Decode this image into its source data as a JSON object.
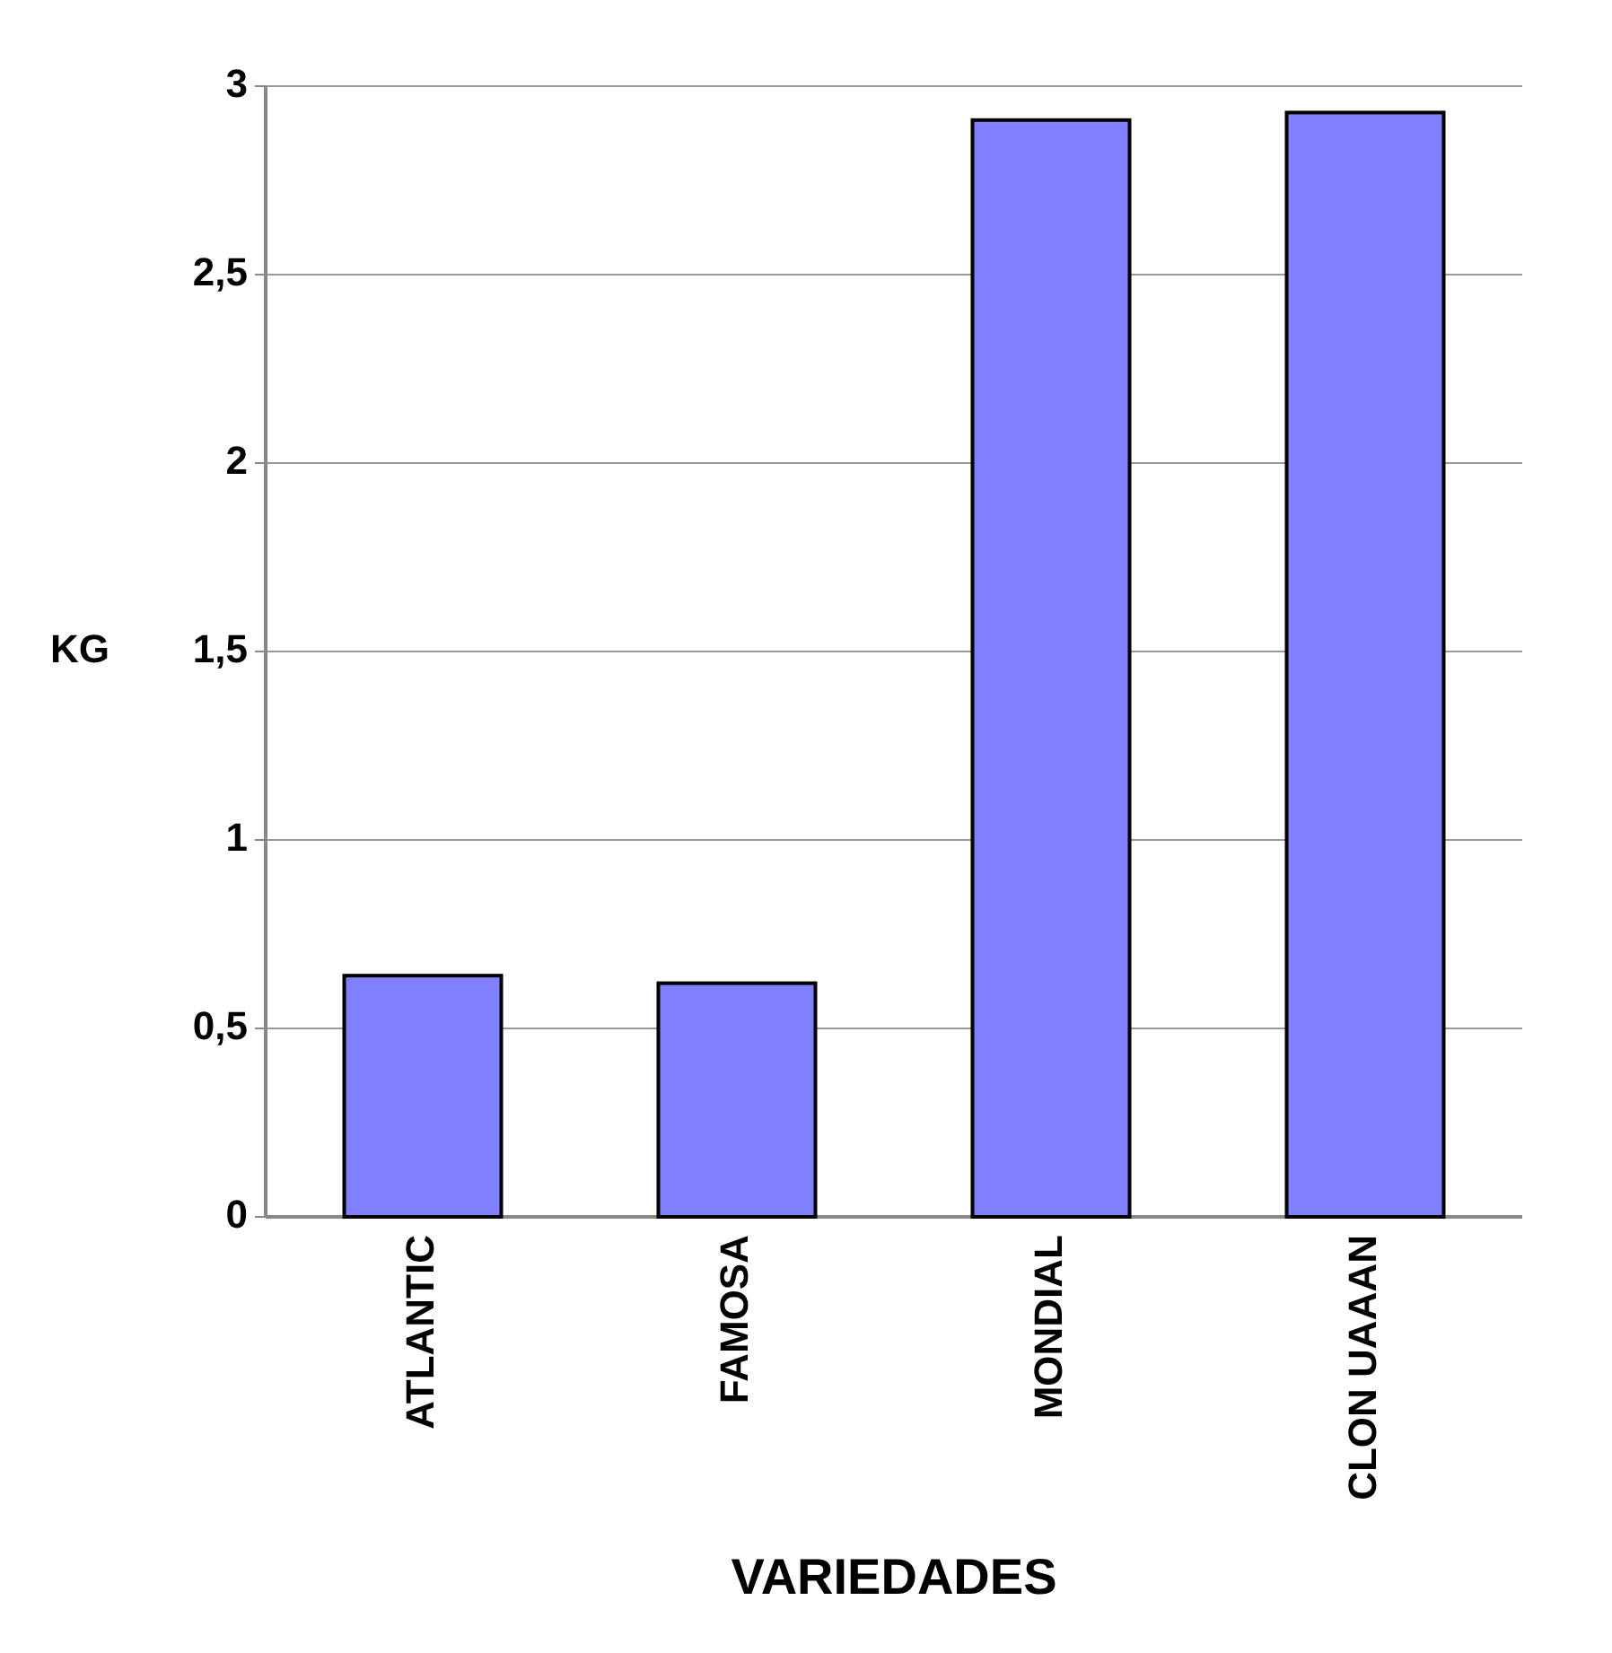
{
  "chart_data": {
    "type": "bar",
    "xlabel": "VARIEDADES",
    "ylabel": "KG",
    "categories": [
      "ATLANTIC",
      "FAMOSA",
      "MONDIAL",
      "CLON UAAAN"
    ],
    "values": [
      0.64,
      0.62,
      2.91,
      2.93
    ],
    "color": "#8080ff",
    "ylim": [
      0,
      3
    ],
    "yticks": [
      0,
      {
        "value": 0.5,
        "label": "0,5"
      },
      1,
      {
        "value": 1.5,
        "label": "1,5"
      },
      2,
      {
        "value": 2.5,
        "label": "2,5"
      },
      3
    ],
    "grid": "y"
  }
}
